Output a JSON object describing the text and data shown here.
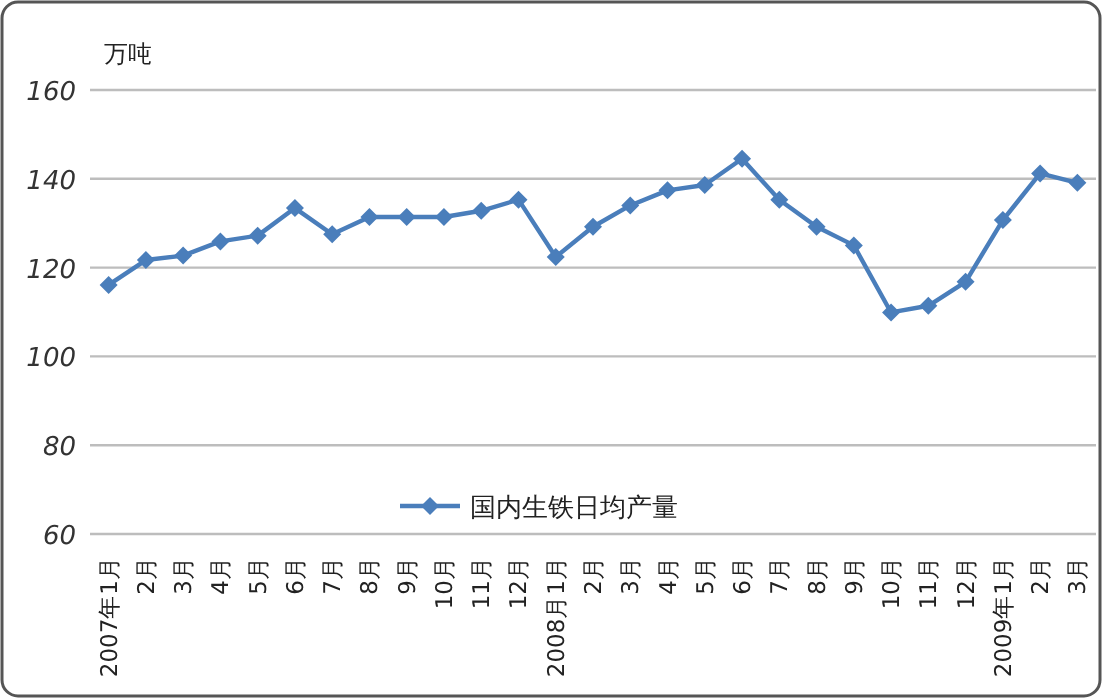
{
  "chart_data": {
    "type": "line",
    "ylabel": "万吨",
    "categories": [
      "2007年1月",
      "2月",
      "3月",
      "4月",
      "5月",
      "6月",
      "7月",
      "8月",
      "9月",
      "10月",
      "11月",
      "12月",
      "2008月1月",
      "2月",
      "3月",
      "4月",
      "5月",
      "6月",
      "7月",
      "8月",
      "9月",
      "10月",
      "11月",
      "12月",
      "2009年1月",
      "2月",
      "3月"
    ],
    "series": [
      {
        "name": "国内生铁日均产量",
        "color": "#4a7ebb",
        "values": [
          116.1,
          121.7,
          122.7,
          125.9,
          127.2,
          133.4,
          127.5,
          131.4,
          131.4,
          131.4,
          132.8,
          135.3,
          122.4,
          129.2,
          134,
          137.4,
          138.6,
          144.5,
          135.3,
          129.2,
          125,
          109.9,
          111.4,
          116.8,
          130.7,
          141.2,
          139.1
        ]
      }
    ],
    "ylim": [
      60,
      160
    ],
    "yticks": [
      60,
      80,
      100,
      120,
      140,
      160
    ],
    "grid": "y",
    "legend": "bottom",
    "marker": "diamond",
    "line_style": "solid"
  }
}
